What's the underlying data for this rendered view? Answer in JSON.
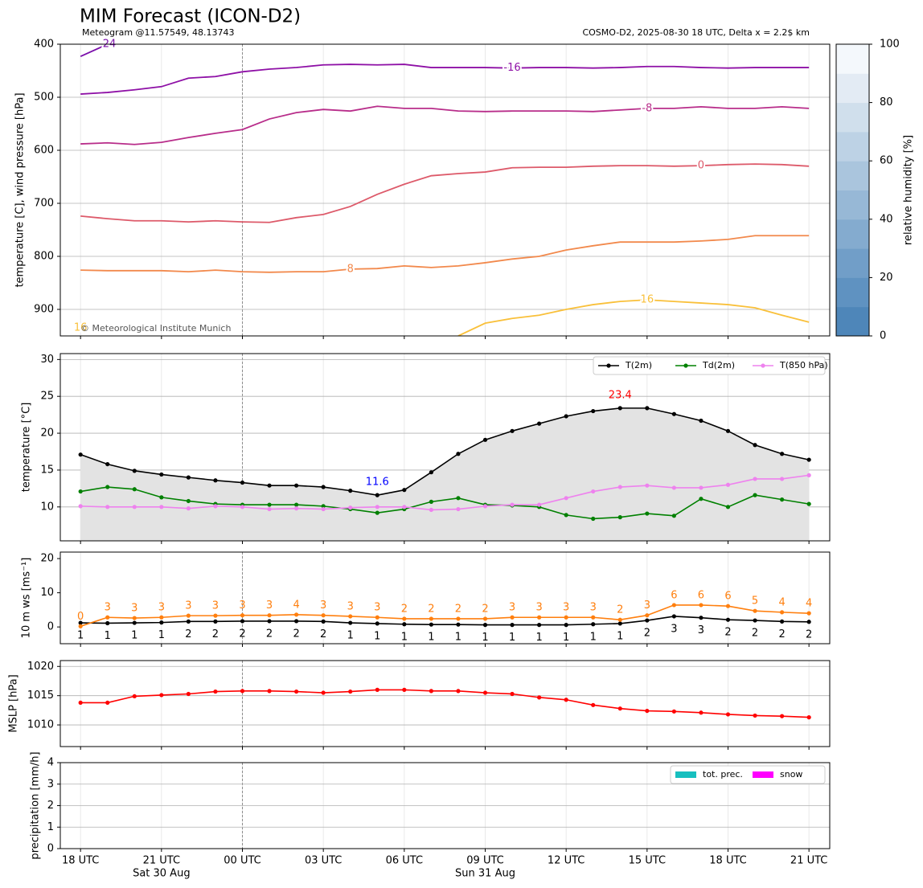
{
  "title": "MIM Forecast (ICON-D2)",
  "subtitle": "Meteogram @11.57549, 48.13743",
  "model_info": "COSMO-D2, 2025-08-30 18 UTC, Delta x = 2.2$ km",
  "credit": "© Meteorological Institute Munich",
  "chart_data": [
    {
      "type": "line",
      "ylabel": "temperature [C], wind pressure [hPa]",
      "x": [
        0,
        1,
        2,
        3,
        4,
        5,
        6,
        7,
        8,
        9,
        10,
        11,
        12,
        13,
        14,
        15,
        16,
        17,
        18,
        19,
        20,
        21,
        22,
        23,
        24,
        25,
        26,
        27
      ],
      "xlim": [
        -0.75,
        27.77
      ],
      "ylim": [
        950,
        400
      ],
      "yticks": [
        400,
        500,
        600,
        700,
        800,
        900
      ],
      "grid": true,
      "series": [
        {
          "name": "-24",
          "color": "#7a0eaa",
          "values": [
            423,
            400,
            null,
            null,
            null,
            null,
            null,
            null,
            null,
            null,
            null,
            null,
            null,
            null,
            null,
            null,
            null,
            null,
            null,
            null,
            null,
            null,
            null,
            null,
            null,
            null,
            null,
            null
          ]
        },
        {
          "name": "-16",
          "color": "#8e10a6",
          "values": [
            494,
            491,
            486,
            480,
            464,
            461,
            452,
            447,
            444,
            439,
            438,
            439,
            438,
            444,
            444,
            444,
            445,
            444,
            444,
            445,
            444,
            442,
            442,
            444,
            445,
            444,
            444,
            444
          ]
        },
        {
          "name": "-8",
          "color": "#b82d8a",
          "values": [
            588,
            586,
            589,
            585,
            576,
            568,
            561,
            541,
            529,
            523,
            526,
            517,
            521,
            521,
            526,
            527,
            526,
            526,
            526,
            527,
            524,
            521,
            521,
            518,
            521,
            521,
            518,
            521
          ]
        },
        {
          "name": "0",
          "color": "#dd5a6a",
          "values": [
            724,
            729,
            733,
            733,
            735,
            733,
            735,
            736,
            727,
            721,
            706,
            683,
            664,
            648,
            644,
            641,
            633,
            632,
            632,
            630,
            629,
            629,
            630,
            629,
            627,
            626,
            627,
            630
          ]
        },
        {
          "name": "8",
          "color": "#f2894c",
          "values": [
            826,
            827,
            827,
            827,
            829,
            826,
            829,
            830,
            829,
            829,
            824,
            823,
            818,
            821,
            818,
            812,
            805,
            800,
            788,
            780,
            773,
            773,
            773,
            771,
            768,
            761,
            761,
            761
          ]
        },
        {
          "name": "16",
          "color": "#f9c03a",
          "values": [
            935,
            null,
            null,
            null,
            null,
            null,
            null,
            null,
            null,
            null,
            null,
            null,
            null,
            null,
            950,
            926,
            917,
            911,
            900,
            891,
            885,
            882,
            885,
            888,
            891,
            897,
            911,
            924
          ]
        }
      ],
      "colorbar": {
        "label": "relative humidity [%]",
        "lim": [
          0,
          100
        ],
        "ticks": [
          0,
          20,
          40,
          60,
          80,
          100
        ],
        "colors": [
          "#4e86b9",
          "#5f92c1",
          "#719ec8",
          "#84abcf",
          "#97b8d6",
          "#aac5dd",
          "#bdd2e5",
          "#d0dfec",
          "#e3ebf4",
          "#f4f8fc"
        ]
      }
    },
    {
      "type": "line",
      "ylabel": "temperature [°C]",
      "x": [
        0,
        1,
        2,
        3,
        4,
        5,
        6,
        7,
        8,
        9,
        10,
        11,
        12,
        13,
        14,
        15,
        16,
        17,
        18,
        19,
        20,
        21,
        22,
        23,
        24,
        25,
        26,
        27
      ],
      "xlim": [
        -0.75,
        27.77
      ],
      "ylim": [
        5.4,
        30.8
      ],
      "yticks": [
        10,
        15,
        20,
        25,
        30
      ],
      "grid": true,
      "markers": true,
      "fill": "#e3e3e3",
      "legend": "upper right",
      "series": [
        {
          "name": "T(2m)",
          "color": "#000000",
          "values": [
            17.1,
            15.8,
            14.9,
            14.4,
            14.0,
            13.6,
            13.3,
            12.9,
            12.9,
            12.7,
            12.2,
            11.6,
            12.3,
            14.7,
            17.2,
            19.1,
            20.3,
            21.3,
            22.3,
            23.0,
            23.4,
            23.4,
            22.6,
            21.7,
            20.3,
            18.4,
            17.2,
            16.4
          ]
        },
        {
          "name": "Td(2m)",
          "color": "#008000",
          "values": [
            12.1,
            12.7,
            12.4,
            11.3,
            10.8,
            10.4,
            10.3,
            10.3,
            10.3,
            10.1,
            9.7,
            9.2,
            9.7,
            10.7,
            11.2,
            10.3,
            10.2,
            10.0,
            8.9,
            8.4,
            8.6,
            9.1,
            8.8,
            11.1,
            10.0,
            11.6,
            11.0,
            10.4
          ]
        },
        {
          "name": "T(850 hPa)",
          "color": "#ee82ee",
          "values": [
            10.1,
            10.0,
            10.0,
            10.0,
            9.8,
            10.1,
            10.0,
            9.7,
            9.8,
            9.7,
            9.9,
            10.0,
            10.0,
            9.6,
            9.7,
            10.1,
            10.3,
            10.3,
            11.2,
            12.1,
            12.7,
            12.9,
            12.6,
            12.6,
            13.0,
            13.8,
            13.8,
            14.3
          ]
        }
      ],
      "annotations": [
        {
          "text": "23.4",
          "at": "max",
          "color": "#ff0000"
        },
        {
          "text": "11.6",
          "at": "min",
          "color": "#0000ff"
        }
      ]
    },
    {
      "type": "line",
      "ylabel": "10 m ws [ms⁻¹]",
      "x": [
        0,
        1,
        2,
        3,
        4,
        5,
        6,
        7,
        8,
        9,
        10,
        11,
        12,
        13,
        14,
        15,
        16,
        17,
        18,
        19,
        20,
        21,
        22,
        23,
        24,
        25,
        26,
        27
      ],
      "xlim": [
        -0.75,
        27.77
      ],
      "ylim": [
        -4.9,
        21.9
      ],
      "yticks": [
        0,
        10,
        20
      ],
      "markers": true,
      "series": [
        {
          "color": "#000000",
          "values": [
            1.2,
            1.1,
            1.2,
            1.3,
            1.6,
            1.6,
            1.7,
            1.7,
            1.7,
            1.6,
            1.2,
            1.0,
            0.8,
            0.7,
            0.7,
            0.6,
            0.6,
            0.6,
            0.6,
            0.8,
            1.0,
            1.9,
            3.1,
            2.7,
            2.1,
            1.9,
            1.6,
            1.5
          ],
          "value_labels": [
            "1",
            "1",
            "1",
            "1",
            "2",
            "2",
            "2",
            "2",
            "2",
            "2",
            "1",
            "1",
            "1",
            "1",
            "1",
            "1",
            "1",
            "1",
            "1",
            "1",
            "1",
            "2",
            "3",
            "3",
            "2",
            "2",
            "2",
            "2"
          ]
        },
        {
          "color": "#ff7f0e",
          "values": [
            0.2,
            2.8,
            2.6,
            2.8,
            3.3,
            3.3,
            3.4,
            3.4,
            3.6,
            3.4,
            3.1,
            2.8,
            2.4,
            2.4,
            2.4,
            2.4,
            2.8,
            2.8,
            2.8,
            2.8,
            2.1,
            3.4,
            6.4,
            6.4,
            6.1,
            4.7,
            4.3,
            4.0
          ],
          "value_labels": [
            "0",
            "3",
            "3",
            "3",
            "3",
            "3",
            "3",
            "3",
            "4",
            "3",
            "3",
            "3",
            "2",
            "2",
            "2",
            "2",
            "3",
            "3",
            "3",
            "3",
            "2",
            "3",
            "6",
            "6",
            "6",
            "5",
            "4",
            "4"
          ]
        }
      ]
    },
    {
      "type": "line",
      "ylabel": "MSLP [hPa]",
      "x": [
        0,
        1,
        2,
        3,
        4,
        5,
        6,
        7,
        8,
        9,
        10,
        11,
        12,
        13,
        14,
        15,
        16,
        17,
        18,
        19,
        20,
        21,
        22,
        23,
        24,
        25,
        26,
        27
      ],
      "xlim": [
        -0.75,
        27.77
      ],
      "ylim": [
        1006.3,
        1021
      ],
      "yticks": [
        1010,
        1015,
        1020
      ],
      "grid": true,
      "markers": true,
      "series": [
        {
          "color": "#ff0000",
          "values": [
            1013.8,
            1013.8,
            1014.9,
            1015.1,
            1015.3,
            1015.7,
            1015.8,
            1015.8,
            1015.7,
            1015.5,
            1015.7,
            1016.0,
            1016.0,
            1015.8,
            1015.8,
            1015.5,
            1015.3,
            1014.7,
            1014.3,
            1013.4,
            1012.8,
            1012.4,
            1012.3,
            1012.1,
            1011.8,
            1011.6,
            1011.5,
            1011.3
          ]
        }
      ]
    },
    {
      "type": "bar",
      "ylabel": "precipitation [mm/h]",
      "x": [
        0,
        1,
        2,
        3,
        4,
        5,
        6,
        7,
        8,
        9,
        10,
        11,
        12,
        13,
        14,
        15,
        16,
        17,
        18,
        19,
        20,
        21,
        22,
        23,
        24,
        25,
        26,
        27
      ],
      "xlim": [
        -0.75,
        27.77
      ],
      "ylim": [
        0,
        4
      ],
      "yticks": [
        0,
        1,
        2,
        3,
        4
      ],
      "grid": true,
      "legend": "upper right",
      "xticks": [
        {
          "value": 0,
          "label": "18 UTC"
        },
        {
          "value": 3,
          "label": "21 UTC"
        },
        {
          "value": 6,
          "label": "00 UTC"
        },
        {
          "value": 9,
          "label": "03 UTC"
        },
        {
          "value": 12,
          "label": "06 UTC"
        },
        {
          "value": 15,
          "label": "09 UTC"
        },
        {
          "value": 18,
          "label": "12 UTC"
        },
        {
          "value": 21,
          "label": "15 UTC"
        },
        {
          "value": 24,
          "label": "18 UTC"
        },
        {
          "value": 27,
          "label": "21 UTC"
        }
      ],
      "xdates": [
        {
          "value": 3,
          "label": "Sat 30 Aug"
        },
        {
          "value": 15,
          "label": "Sun 31 Aug"
        }
      ],
      "vline": 6,
      "series": [
        {
          "name": "tot. prec.",
          "color": "#17bfbf",
          "values": [
            0,
            0,
            0,
            0,
            0,
            0,
            0,
            0,
            0,
            0,
            0,
            0,
            0,
            0,
            0,
            0,
            0,
            0,
            0,
            0,
            0,
            0,
            0,
            0,
            0,
            0,
            0,
            0
          ]
        },
        {
          "name": "snow",
          "color": "#ff00ff",
          "values": [
            0,
            0,
            0,
            0,
            0,
            0,
            0,
            0,
            0,
            0,
            0,
            0,
            0,
            0,
            0,
            0,
            0,
            0,
            0,
            0,
            0,
            0,
            0,
            0,
            0,
            0,
            0,
            0
          ]
        }
      ]
    }
  ]
}
